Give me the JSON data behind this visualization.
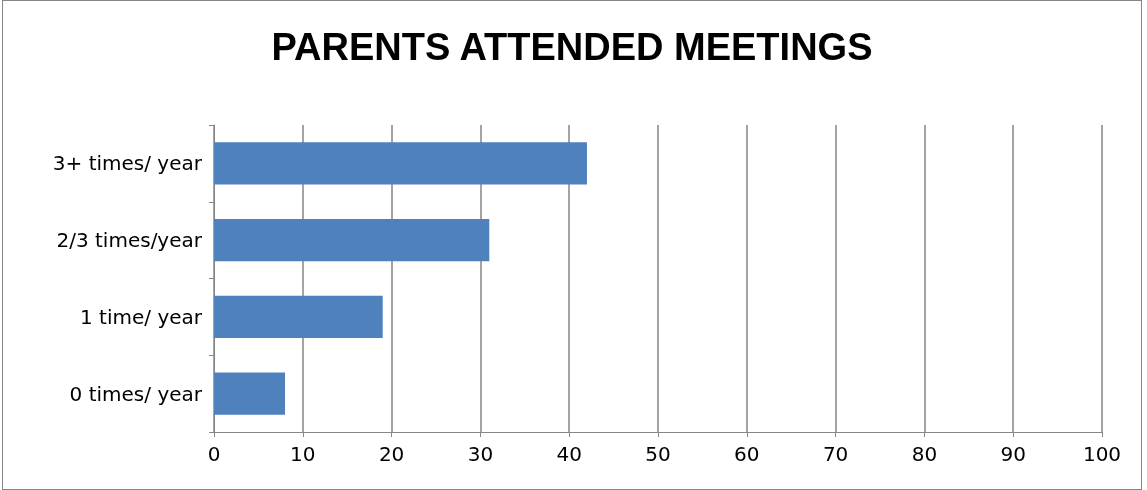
{
  "chart_data": {
    "type": "bar",
    "orientation": "horizontal",
    "title": "PARENTS ATTENDED MEETINGS",
    "categories": [
      "3+ times/ year",
      "2/3 times/year",
      "1 time/ year",
      "0 times/ year"
    ],
    "values": [
      42,
      31,
      19,
      8
    ],
    "color": "#4f81bd",
    "xlim": [
      0,
      100
    ],
    "xticks": [
      0,
      10,
      20,
      30,
      40,
      50,
      60,
      70,
      80,
      90,
      100
    ],
    "grid": "x"
  }
}
